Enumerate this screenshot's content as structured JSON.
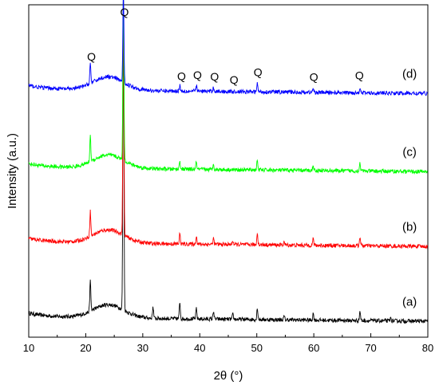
{
  "chart_data": {
    "type": "line",
    "xlabel": "2θ (°)",
    "ylabel": "Intensity (a.u.)",
    "xlim": [
      10,
      80
    ],
    "xticks": [
      "10",
      "20",
      "30",
      "40",
      "50",
      "60",
      "70",
      "80"
    ],
    "yticks": [],
    "grid": false,
    "legend": "none",
    "series": [
      {
        "label": "(a)",
        "color": "#000000",
        "baseline": 0.06,
        "hump": 0.04,
        "peaks": [
          [
            20.8,
            0.09
          ],
          [
            26.6,
            0.92
          ],
          [
            31.8,
            0.035
          ],
          [
            36.5,
            0.05
          ],
          [
            39.4,
            0.03
          ],
          [
            42.4,
            0.025
          ],
          [
            45.8,
            0.015
          ],
          [
            50.1,
            0.035
          ],
          [
            54.8,
            0.01
          ],
          [
            59.9,
            0.02
          ],
          [
            68.1,
            0.028
          ],
          [
            73.5,
            0.008
          ]
        ]
      },
      {
        "label": "(b)",
        "color": "#ff0000",
        "baseline": 0.285,
        "hump": 0.04,
        "peaks": [
          [
            20.8,
            0.075
          ],
          [
            26.6,
            0.72
          ],
          [
            36.5,
            0.03
          ],
          [
            39.4,
            0.025
          ],
          [
            42.4,
            0.018
          ],
          [
            45.8,
            0.012
          ],
          [
            50.1,
            0.035
          ],
          [
            54.8,
            0.01
          ],
          [
            59.9,
            0.02
          ],
          [
            68.1,
            0.028
          ]
        ]
      },
      {
        "label": "(c)",
        "color": "#00ff00",
        "baseline": 0.51,
        "hump": 0.04,
        "peaks": [
          [
            20.8,
            0.075
          ],
          [
            26.6,
            0.52
          ],
          [
            36.5,
            0.025
          ],
          [
            39.4,
            0.022
          ],
          [
            42.4,
            0.018
          ],
          [
            50.1,
            0.03
          ],
          [
            59.9,
            0.018
          ],
          [
            68.1,
            0.025
          ]
        ]
      },
      {
        "label": "(d)",
        "color": "#0000ff",
        "baseline": 0.745,
        "hump": 0.04,
        "peaks": [
          [
            20.8,
            0.06
          ],
          [
            26.6,
            0.27
          ],
          [
            36.5,
            0.018
          ],
          [
            39.4,
            0.018
          ],
          [
            42.4,
            0.012
          ],
          [
            50.1,
            0.025
          ],
          [
            59.9,
            0.012
          ],
          [
            68.1,
            0.018
          ]
        ]
      }
    ],
    "annotations": [
      {
        "text": "Q",
        "x": 21.0
      },
      {
        "text": "Q",
        "x": 26.8
      },
      {
        "text": "Q",
        "x": 36.8
      },
      {
        "text": "Q",
        "x": 39.6
      },
      {
        "text": "Q",
        "x": 42.6
      },
      {
        "text": "Q",
        "x": 46.0
      },
      {
        "text": "Q",
        "x": 50.2
      },
      {
        "text": "Q",
        "x": 60.0
      },
      {
        "text": "Q",
        "x": 68.0
      }
    ]
  }
}
